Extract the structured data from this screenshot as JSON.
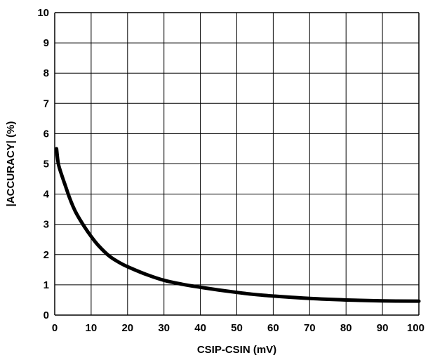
{
  "chart_data": {
    "type": "line",
    "title": "",
    "xlabel": "CSIP-CSIN (mV)",
    "ylabel": "|ACCURACY| (%)",
    "xlim": [
      0,
      100
    ],
    "ylim": [
      0,
      10
    ],
    "x_ticks": [
      "0",
      "10",
      "20",
      "30",
      "40",
      "50",
      "60",
      "70",
      "80",
      "90",
      "100"
    ],
    "y_ticks": [
      "0",
      "1",
      "2",
      "3",
      "4",
      "5",
      "6",
      "7",
      "8",
      "9",
      "10"
    ],
    "grid": true,
    "series": [
      {
        "x": [
          0.5,
          1,
          2,
          3,
          4,
          5,
          6,
          8,
          10,
          12,
          15,
          18,
          20,
          25,
          30,
          35,
          40,
          45,
          50,
          55,
          60,
          70,
          80,
          90,
          100
        ],
        "y": [
          5.5,
          5.0,
          4.6,
          4.25,
          3.9,
          3.6,
          3.35,
          2.95,
          2.6,
          2.3,
          1.95,
          1.72,
          1.6,
          1.35,
          1.15,
          1.02,
          0.92,
          0.83,
          0.75,
          0.68,
          0.63,
          0.55,
          0.5,
          0.47,
          0.46
        ]
      }
    ],
    "colors": {
      "line": "#000000",
      "grid": "#000000"
    }
  }
}
